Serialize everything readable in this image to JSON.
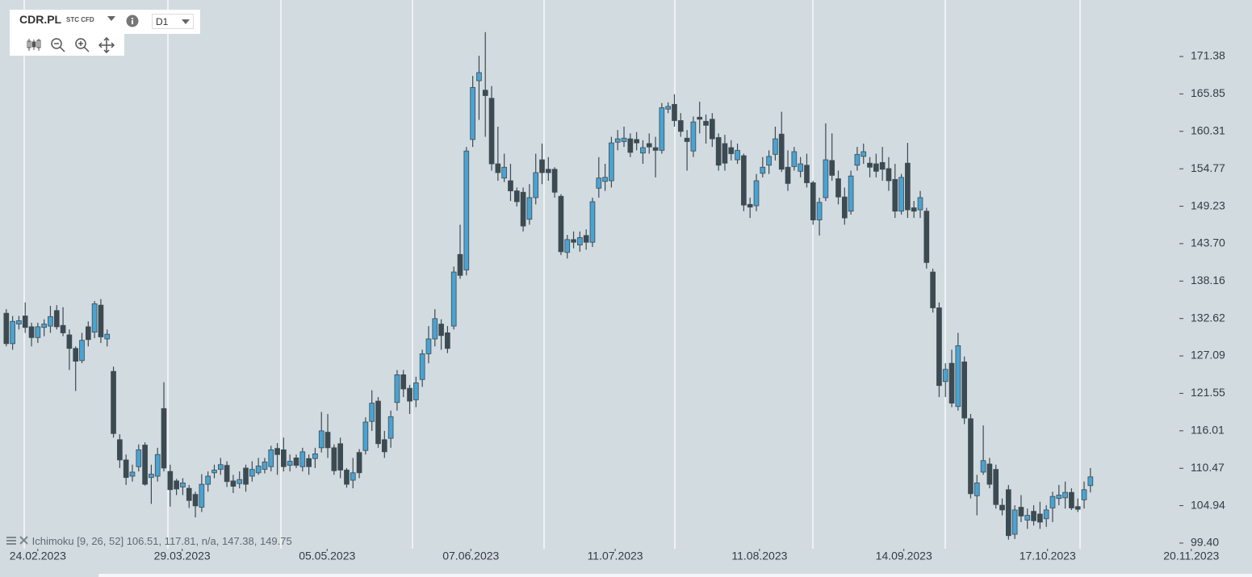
{
  "toolbar": {
    "symbol": "CDR.PL",
    "instrument_type": "STC CFD",
    "timeframe": "D1"
  },
  "chart_data": {
    "type": "candlestick",
    "indicator_label": "Ichimoku [9, 26, 52] 106.51, 117.81, n/a, 147.38, 149.75",
    "up_color": "#4aa3d2",
    "down_color": "#3c4a52",
    "xlim": [
      -1,
      184.7
    ],
    "xticks": [
      {
        "value": 5.0,
        "label": "24.02.2023"
      },
      {
        "value": 27.9,
        "label": "29.03.2023"
      },
      {
        "value": 50.9,
        "label": "05.05.2023"
      },
      {
        "value": 73.7,
        "label": "07.06.2023"
      },
      {
        "value": 96.6,
        "label": "11.07.2023"
      },
      {
        "value": 119.5,
        "label": "11.08.2023"
      },
      {
        "value": 142.4,
        "label": "14.09.2023"
      },
      {
        "value": 165.2,
        "label": "17.10.2023"
      },
      {
        "value": 188.0,
        "label": "20.11.2023"
      }
    ],
    "ylim": [
      98.56,
      179.74
    ],
    "yticks": [
      171.38,
      165.85,
      160.31,
      154.77,
      149.23,
      {
        "value": 143.7,
        "label": "143.70"
      },
      138.16,
      132.62,
      127.09,
      121.55,
      116.01,
      110.47,
      104.94,
      {
        "value": 99.4,
        "label": "99.40"
      }
    ],
    "open": [
      133.4,
      128.9,
      131.8,
      133,
      131.4,
      129.8,
      131.3,
      131.5,
      133.8,
      131.6,
      130.2,
      128.2,
      126.4,
      131.4,
      130.6,
      134.6,
      129.6,
      124.8,
      114.7,
      111.7,
      109.3,
      110.7,
      113.9,
      109.1,
      109.3,
      119.3,
      110,
      108.6,
      107.7,
      107.5,
      106.6,
      104.7,
      108.1,
      109.8,
      110.3,
      110.9,
      108.6,
      108.2,
      110.5,
      109.3,
      109.8,
      110.3,
      110.7,
      113.4,
      113.2,
      110.9,
      112,
      110.7,
      111.9,
      111.9,
      113.5,
      115.8,
      113.5,
      114.1,
      110.2,
      108.7,
      112.8,
      113.1,
      117.4,
      120.4,
      114.7,
      114.9,
      120.2,
      124.3,
      122.3,
      120.6,
      123.6,
      127.4,
      129.6,
      131.8,
      130.5,
      131.5,
      142.1,
      139.8,
      159.1,
      167.8,
      166.4,
      165.2,
      155.5,
      153.4,
      153,
      151.5,
      151.3,
      147.3,
      150.5,
      156.1,
      154.7,
      154.7,
      150.7,
      142.4,
      144.3,
      143.5,
      144.9,
      143.9,
      151.9,
      152.9,
      153,
      158.7,
      158.8,
      159.2,
      159.1,
      157.1,
      158.5,
      157.9,
      157.5,
      163.6,
      164.3,
      161.9,
      159.3,
      157.4,
      162.4,
      161.8,
      162.1,
      159.4,
      158.5,
      157.9,
      156.1,
      156.7,
      149.5,
      149.3,
      154.1,
      155.3,
      156.9,
      159.9,
      155,
      155.1,
      154.4,
      155.3,
      152.7,
      147.2,
      150.5,
      156,
      153.3,
      150.6,
      148.5,
      155.3,
      156.6,
      155.6,
      155.5,
      155.7,
      154.8,
      153.2,
      148.5,
      155.6,
      149,
      148.7,
      148.5,
      139.5,
      134.2,
      123.3,
      126,
      119.6,
      126.2,
      117.8,
      106.4,
      109.9,
      111.1,
      110.3,
      105,
      107.3,
      100.7,
      104.7,
      102.8,
      104.1,
      103.7,
      103,
      104.6,
      106,
      106.1,
      106.9,
      104.8,
      105.8,
      107.9
    ],
    "high": [
      134,
      133,
      133,
      135,
      132,
      132,
      132.5,
      134.5,
      134.6,
      134.3,
      131,
      128.5,
      130.5,
      132.2,
      135.2,
      135.5,
      131,
      125.5,
      115.5,
      112.5,
      111,
      114,
      114.3,
      111,
      113.5,
      123.2,
      111,
      108.9,
      109,
      108,
      107,
      109.6,
      110,
      111,
      112,
      111.5,
      109.5,
      110,
      111,
      111.5,
      112,
      112,
      113.8,
      114.2,
      115,
      112.5,
      112.5,
      113.5,
      112.5,
      113.5,
      118.8,
      118.5,
      114,
      115,
      110.5,
      112,
      113.3,
      118,
      122,
      121,
      116,
      119,
      125,
      125,
      122.8,
      124,
      128,
      131.5,
      134,
      132.5,
      131.5,
      140.3,
      146.5,
      158,
      168.5,
      171.5,
      175,
      167,
      161,
      157,
      155.5,
      152,
      152,
      152.5,
      157,
      158.5,
      156.5,
      155,
      151,
      145,
      145.5,
      145.5,
      145.8,
      150.5,
      156.5,
      155.5,
      159.5,
      160.5,
      161,
      160,
      160.2,
      159,
      160,
      159.5,
      164.5,
      164.6,
      165.8,
      163,
      160.5,
      162.5,
      164.7,
      162.8,
      163,
      160,
      159.8,
      159,
      158.5,
      157,
      150.5,
      154,
      156.5,
      157.5,
      161,
      163.2,
      157.5,
      158,
      156.5,
      157,
      153,
      150.5,
      161.5,
      160,
      154.5,
      152,
      154.5,
      158,
      158.5,
      156.5,
      157,
      158,
      156.5,
      155.5,
      154,
      158.6,
      150,
      151.5,
      149,
      140,
      135,
      126,
      128,
      130.5,
      127,
      118.5,
      109.5,
      116.8,
      112,
      111,
      106,
      108,
      105,
      106.5,
      104.5,
      105,
      105.5,
      105,
      107,
      108,
      108.5,
      107.5,
      106,
      108.5,
      110.5
    ],
    "low": [
      128.5,
      128,
      131,
      130.5,
      128.5,
      129,
      130,
      130.5,
      131,
      130,
      125,
      121.9,
      126,
      128.5,
      129.7,
      129,
      128.5,
      115,
      110.5,
      108,
      108.5,
      110,
      107.9,
      105.2,
      108.5,
      110,
      104.8,
      106.5,
      106.5,
      104.6,
      103.2,
      104,
      107,
      109,
      109.5,
      107.7,
      106.8,
      107.5,
      107,
      108.5,
      109.5,
      109.7,
      110,
      109.5,
      110,
      110,
      110.5,
      110,
      109.5,
      110.5,
      112.8,
      112,
      109.5,
      109,
      107.6,
      107.5,
      109,
      112.5,
      116,
      113.5,
      112,
      113.5,
      119,
      121,
      118.5,
      119.5,
      122.5,
      126,
      128.5,
      128,
      127.5,
      131,
      138.5,
      139,
      158,
      162,
      159.5,
      154.5,
      153,
      152.8,
      150,
      149.2,
      145.5,
      146.5,
      149.5,
      152.5,
      153,
      150.5,
      142,
      141.5,
      143,
      142.5,
      142.8,
      143.2,
      150.5,
      151.5,
      152,
      157.5,
      158,
      156.5,
      157.5,
      155.5,
      157,
      153.5,
      157,
      163,
      161,
      159.5,
      154.5,
      156.5,
      160,
      158.5,
      158,
      154.5,
      154.5,
      156,
      155.5,
      148.5,
      147.5,
      148.5,
      153.5,
      154,
      156,
      154.3,
      151.5,
      154.5,
      153.5,
      152,
      146.5,
      144.9,
      150,
      153,
      149.5,
      146.5,
      148,
      154.5,
      155.5,
      153.5,
      153.5,
      153,
      151.5,
      147.5,
      148,
      147.5,
      147.5,
      147.5,
      140,
      133.5,
      121,
      121,
      119.5,
      119,
      117,
      106,
      103.5,
      109.5,
      107.5,
      104.5,
      103.5,
      99.9,
      100,
      102.5,
      101.5,
      102,
      101.5,
      101.8,
      102.5,
      105,
      104.5,
      104.3,
      104,
      104.5,
      106.9
    ],
    "close": [
      128.9,
      132.2,
      132.3,
      131.3,
      129.8,
      131.4,
      131.8,
      132.9,
      131.4,
      130.5,
      128.2,
      126.3,
      129.4,
      129.5,
      134.8,
      129.9,
      130.3,
      115.6,
      111.7,
      109.1,
      109.9,
      113.2,
      108.1,
      109.6,
      112.5,
      110.5,
      107.3,
      107.4,
      108.3,
      105.7,
      104.9,
      108.1,
      109.3,
      110.2,
      111,
      108.5,
      107.8,
      108.8,
      108.1,
      110.3,
      110.8,
      111.4,
      113.2,
      112.5,
      110.7,
      111.5,
      110.9,
      112.9,
      110.7,
      112.6,
      116,
      113.5,
      110.1,
      110.2,
      108.1,
      109.8,
      109.8,
      117.3,
      120.1,
      114.1,
      112.9,
      118.1,
      124.3,
      122.2,
      120.4,
      123.1,
      127.4,
      129.6,
      132.6,
      130.1,
      128.2,
      139.5,
      139,
      157.4,
      166.8,
      169,
      165.6,
      155.5,
      154.2,
      155,
      151.5,
      149.9,
      146.3,
      150.5,
      154.2,
      154.2,
      154.2,
      151.3,
      142.5,
      144.3,
      143.9,
      144.6,
      143.9,
      149.9,
      153.4,
      153.5,
      158.6,
      159.2,
      159.3,
      157.2,
      158.6,
      157.9,
      158,
      157.5,
      163.8,
      164,
      161.9,
      160.3,
      158.8,
      161.7,
      162.1,
      161.2,
      159.2,
      155.3,
      155.6,
      157,
      157.5,
      149.4,
      149.1,
      153,
      155,
      156.6,
      159.2,
      154.7,
      152.6,
      157.3,
      155.5,
      152.7,
      147.2,
      149.8,
      156.1,
      153.8,
      150.6,
      147.5,
      153.7,
      156.9,
      157.3,
      155,
      154.4,
      154.7,
      153,
      148.5,
      153.5,
      148.7,
      148.5,
      150.5,
      140.9,
      134.2,
      122.7,
      125.1,
      120.1,
      128.6,
      117.9,
      106.7,
      108.3,
      111.6,
      108.1,
      105.1,
      104.3,
      100.5,
      104.3,
      103.4,
      103.5,
      102.7,
      102.5,
      104.3,
      106.3,
      106.5,
      106.9,
      104.6,
      104.4,
      107.3,
      109.2
    ]
  }
}
